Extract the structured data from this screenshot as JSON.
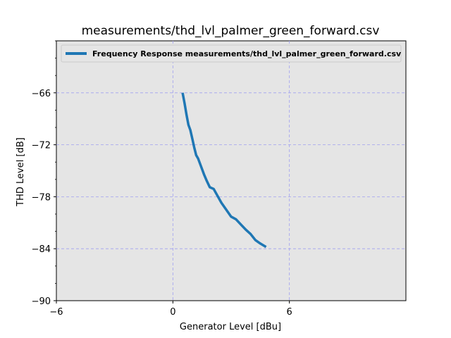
{
  "chart_data": {
    "type": "line",
    "title": "measurements/thd_lvl_palmer_green_forward.csv",
    "xlabel": "Generator Level [dBu]",
    "ylabel": "THD Level [dB]",
    "xlim": [
      -6,
      12
    ],
    "ylim": [
      -90,
      -60
    ],
    "xticks": [
      -6,
      0,
      6
    ],
    "xtick_labels": [
      "−6",
      "0",
      "6"
    ],
    "yticks": [
      -90,
      -84,
      -78,
      -72,
      -66
    ],
    "ytick_labels": [
      "−90",
      "−84",
      "−78",
      "−72",
      "−66"
    ],
    "grid": true,
    "legend_position": "top-left",
    "background_color": "#e5e5e5",
    "grid_color": "#a0a0f0",
    "series": [
      {
        "name": "Frequency Response measurements/thd_lvl_palmer_green_forward.csv",
        "color": "#1f77b4",
        "x": [
          0.5,
          0.6,
          0.7,
          0.8,
          0.9,
          1.0,
          1.1,
          1.2,
          1.3,
          1.45,
          1.6,
          1.75,
          1.9,
          2.1,
          2.3,
          2.5,
          2.75,
          3.0,
          3.25,
          3.5,
          3.75,
          4.0,
          4.25,
          4.5,
          4.8
        ],
        "y": [
          -66.0,
          -67.2,
          -68.5,
          -69.7,
          -70.3,
          -71.3,
          -72.3,
          -73.2,
          -73.6,
          -74.5,
          -75.4,
          -76.2,
          -76.9,
          -77.1,
          -77.9,
          -78.7,
          -79.5,
          -80.3,
          -80.6,
          -81.2,
          -81.8,
          -82.3,
          -83.0,
          -83.4,
          -83.8
        ]
      }
    ]
  }
}
